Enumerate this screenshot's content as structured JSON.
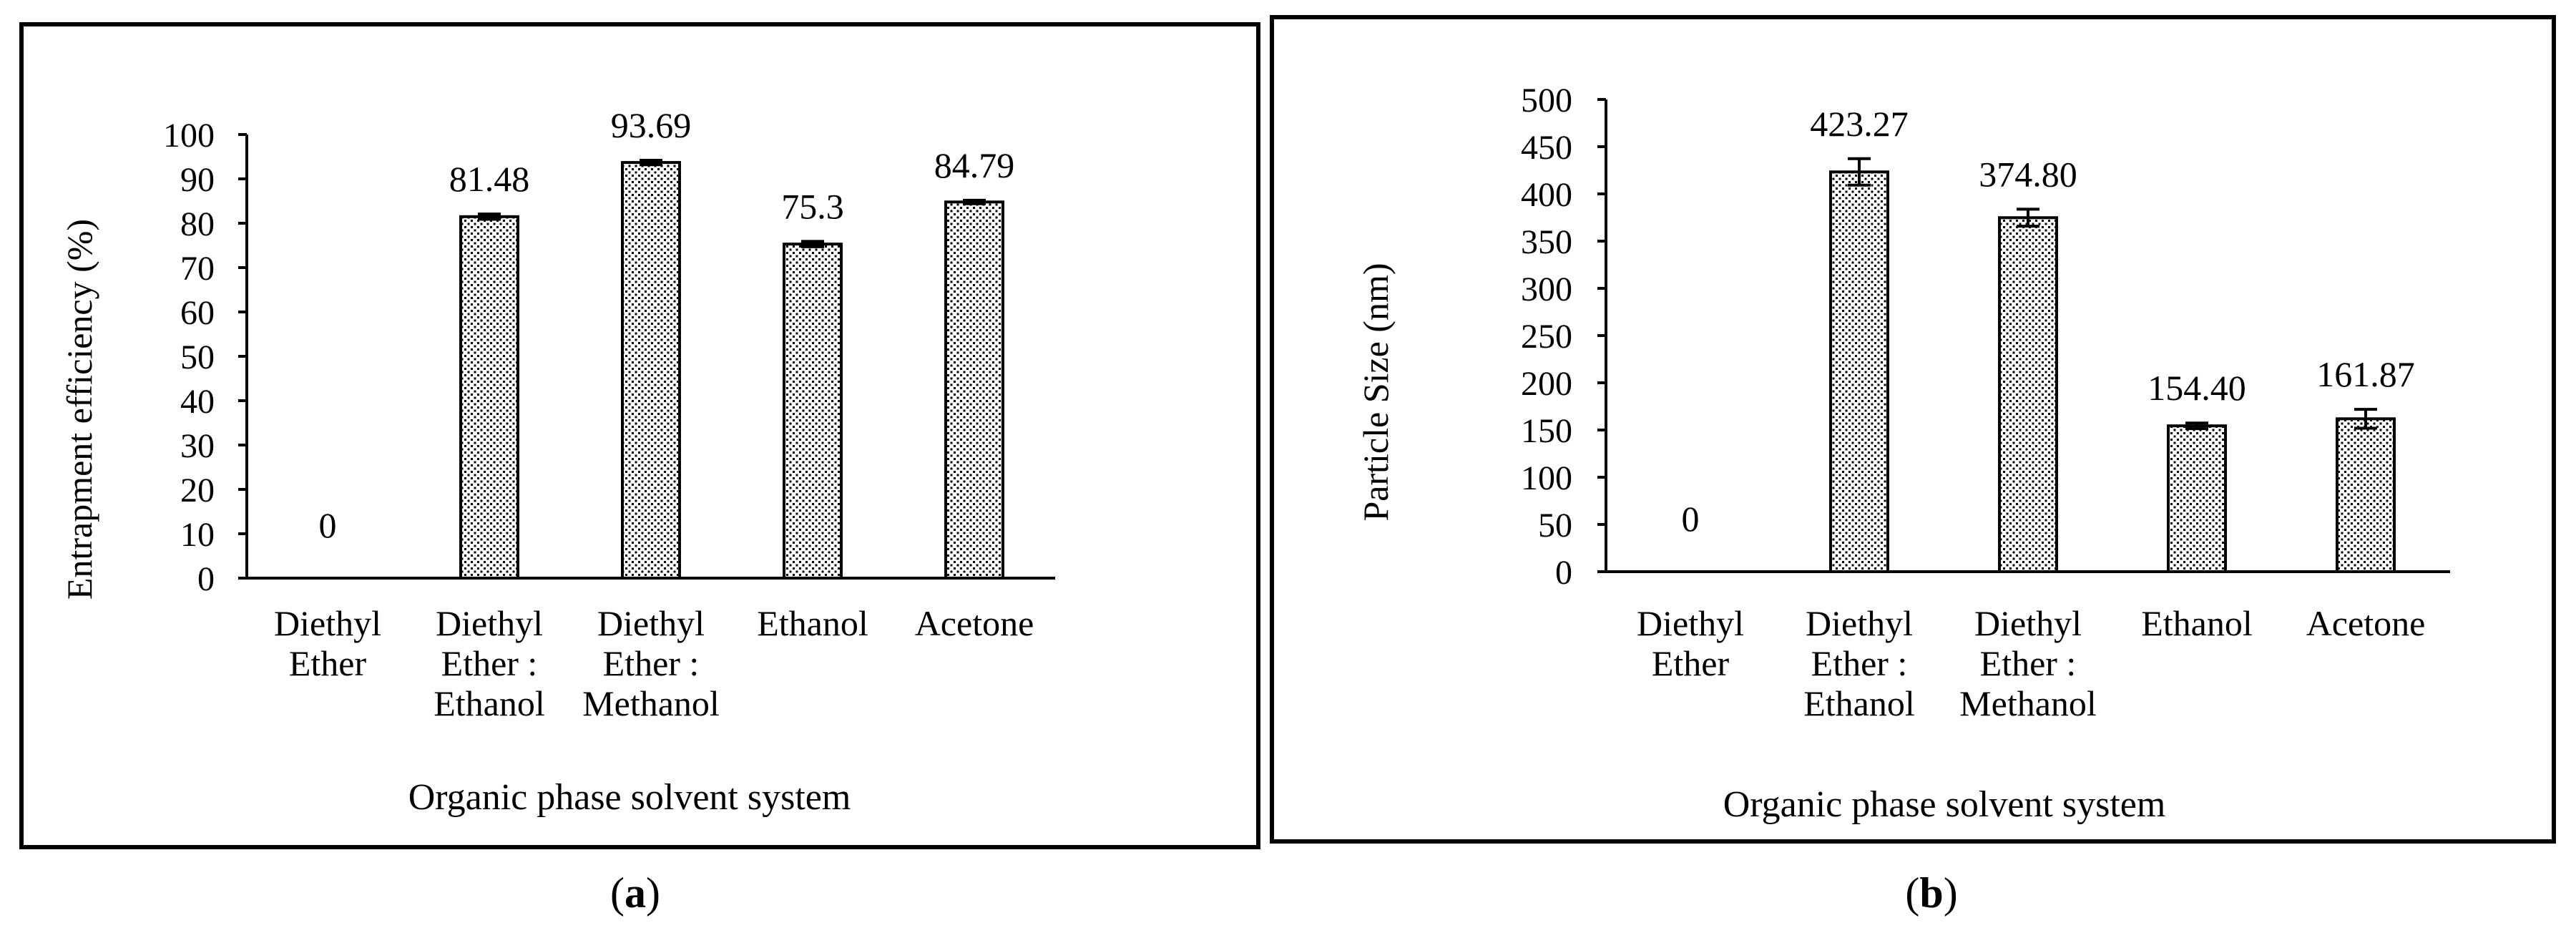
{
  "chart_data": [
    {
      "type": "bar",
      "panel_label": "a",
      "categories": [
        [
          "Diethyl",
          "Ether"
        ],
        [
          "Diethyl",
          "Ether :",
          "Ethanol"
        ],
        [
          "Diethyl",
          "Ether :",
          "Methanol"
        ],
        [
          "Ethanol"
        ],
        [
          "Acetone"
        ]
      ],
      "values": [
        0,
        81.48,
        93.69,
        75.3,
        84.79
      ],
      "value_labels": [
        "0",
        "81.48",
        "93.69",
        "75.3",
        "84.79"
      ],
      "errors": [
        0,
        0.6,
        0.5,
        0.6,
        0.4
      ],
      "xlabel": "Organic phase solvent system",
      "ylabel": "Entrapment efficiency (%)",
      "ylim": [
        0,
        100
      ],
      "yticks": [
        0,
        10,
        20,
        30,
        40,
        50,
        60,
        70,
        80,
        90,
        100
      ],
      "grid": false,
      "bar_fill": "dotted"
    },
    {
      "type": "bar",
      "panel_label": "b",
      "categories": [
        [
          "Diethyl",
          "Ether"
        ],
        [
          "Diethyl",
          "Ether :",
          "Ethanol"
        ],
        [
          "Diethyl",
          "Ether :",
          "Methanol"
        ],
        [
          "Ethanol"
        ],
        [
          "Acetone"
        ]
      ],
      "values": [
        0,
        423.27,
        374.8,
        154.4,
        161.87
      ],
      "value_labels": [
        "0",
        "423.27",
        "374.80",
        "154.40",
        "161.87"
      ],
      "errors": [
        0,
        14,
        9,
        3,
        10
      ],
      "xlabel": "Organic phase solvent system",
      "ylabel": "Particle Size (nm)",
      "ylim": [
        0,
        500
      ],
      "yticks": [
        0,
        50,
        100,
        150,
        200,
        250,
        300,
        350,
        400,
        450,
        500
      ],
      "grid": false,
      "bar_fill": "dotted"
    }
  ],
  "colors": {
    "axis": "#000000",
    "frame": "#000000",
    "dots": "#000000",
    "bar_bg": "#ffffff"
  }
}
